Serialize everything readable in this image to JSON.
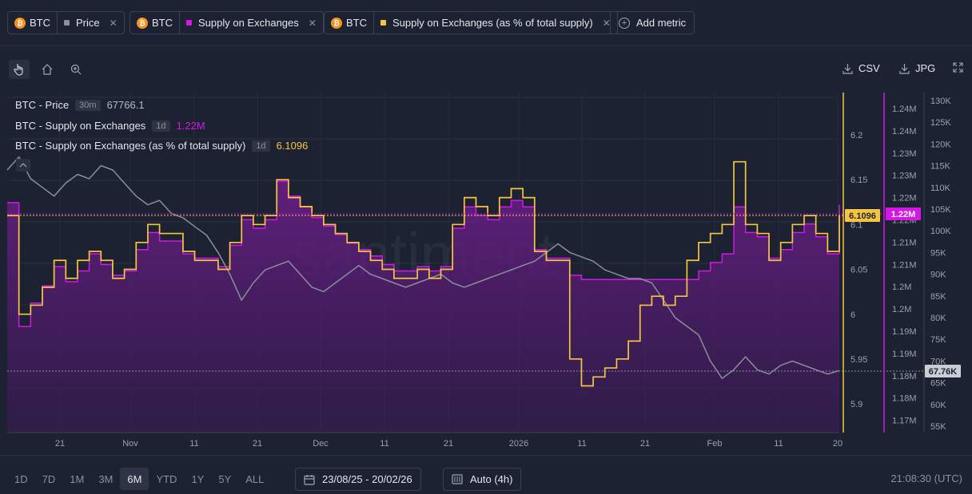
{
  "metrics": [
    {
      "asset": "BTC",
      "name": "Price",
      "color": "#8a8f99"
    },
    {
      "asset": "BTC",
      "name": "Supply on Exchanges",
      "color": "#d417e6"
    },
    {
      "asset": "BTC",
      "name": "Supply on Exchanges (as % of total supply)",
      "color": "#f5c542"
    }
  ],
  "add_metric_label": "Add metric",
  "export": {
    "csv": "CSV",
    "jpg": "JPG"
  },
  "watermark": "santiment",
  "legend": [
    {
      "label": "BTC - Price",
      "interval": "30m",
      "value": "67766.1",
      "color": "#b5b9c2"
    },
    {
      "label": "BTC - Supply on Exchanges",
      "interval": "1d",
      "value": "1.22M",
      "color": "#d417e6"
    },
    {
      "label": "BTC - Supply on Exchanges (as % of total supply)",
      "interval": "1d",
      "value": "6.1096",
      "color": "#f5c542"
    }
  ],
  "range_buttons": [
    "1D",
    "7D",
    "1M",
    "3M",
    "6M",
    "YTD",
    "1Y",
    "5Y",
    "ALL"
  ],
  "active_range": "6M",
  "date_range": "23/08/25 - 20/02/26",
  "interval": "Auto (4h)",
  "clock": "21:08:30 (UTC)",
  "chart_data": {
    "type": "line",
    "x_labels": [
      "21",
      "Nov",
      "11",
      "21",
      "Dec",
      "11",
      "21",
      "2026",
      "11",
      "21",
      "Feb",
      "11",
      "20"
    ],
    "pct_axis": {
      "ticks": [
        "6.2",
        "6.15",
        "6.1",
        "6.05",
        "6",
        "5.95",
        "5.9"
      ],
      "current": "6.1096"
    },
    "supply_axis": {
      "ticks": [
        "1.24M",
        "1.24M",
        "1.23M",
        "1.23M",
        "1.22M",
        "1.22M",
        "1.21M",
        "1.21M",
        "1.2M",
        "1.2M",
        "1.19M",
        "1.19M",
        "1.18M",
        "1.18M",
        "1.17M"
      ],
      "current": "1.22M"
    },
    "price_axis": {
      "ticks": [
        "130K",
        "125K",
        "120K",
        "115K",
        "110K",
        "105K",
        "100K",
        "95K",
        "90K",
        "85K",
        "80K",
        "75K",
        "70K",
        "65K",
        "60K",
        "55K"
      ],
      "current": "67.76K"
    },
    "series": [
      {
        "name": "BTC - Supply on Exchanges (as % of total supply)",
        "axis": "pct",
        "color": "#f5c542",
        "values": [
          6.11,
          6.0,
          6.01,
          6.03,
          6.06,
          6.04,
          6.06,
          6.07,
          6.06,
          6.04,
          6.05,
          6.08,
          6.1,
          6.09,
          6.09,
          6.07,
          6.06,
          6.06,
          6.05,
          6.08,
          6.11,
          6.1,
          6.11,
          6.15,
          6.13,
          6.12,
          6.11,
          6.1,
          6.09,
          6.08,
          6.07,
          6.06,
          6.05,
          6.04,
          6.04,
          6.05,
          6.04,
          6.05,
          6.1,
          6.13,
          6.12,
          6.11,
          6.13,
          6.14,
          6.13,
          6.07,
          6.06,
          6.06,
          5.95,
          5.92,
          5.93,
          5.94,
          5.95,
          5.97,
          6.01,
          6.02,
          6.01,
          6.02,
          6.06,
          6.08,
          6.09,
          6.1,
          6.17,
          6.1,
          6.09,
          6.06,
          6.08,
          6.1,
          6.11,
          6.09,
          6.07,
          6.11
        ]
      },
      {
        "name": "BTC - Supply on Exchanges",
        "axis": "supply",
        "color": "#d417e6",
        "values": [
          1.2205,
          1.1915,
          1.197,
          1.201,
          1.2055,
          1.202,
          1.2045,
          1.2085,
          1.206,
          1.2035,
          1.2045,
          1.2095,
          1.2135,
          1.2115,
          1.2115,
          1.2085,
          1.2075,
          1.2075,
          1.2055,
          1.2105,
          1.2165,
          1.2145,
          1.2165,
          1.2255,
          1.222,
          1.2195,
          1.217,
          1.215,
          1.213,
          1.211,
          1.2095,
          1.208,
          1.206,
          1.2045,
          1.2045,
          1.2055,
          1.2045,
          1.2055,
          1.2145,
          1.2195,
          1.2175,
          1.2165,
          1.2195,
          1.221,
          1.2195,
          1.2095,
          1.2075,
          1.2075,
          1.2035,
          1.2025,
          1.2025,
          1.2025,
          1.2025,
          1.2025,
          1.2025,
          1.2025,
          1.2025,
          1.2025,
          1.2025,
          1.2045,
          1.2065,
          1.2085,
          1.2195,
          1.2135,
          1.2125,
          1.2075,
          1.2095,
          1.2135,
          1.2155,
          1.2125,
          1.2085,
          1.22
        ]
      },
      {
        "name": "BTC - Price",
        "axis": "price",
        "color": "#8a8f99",
        "values": [
          114,
          117,
          112,
          110,
          108,
          111,
          113,
          112,
          115,
          114,
          111,
          108,
          106,
          107,
          104,
          103,
          101,
          99,
          95,
          90,
          84,
          88,
          91,
          92,
          93,
          90,
          87,
          86,
          88,
          90,
          92,
          90,
          89,
          88,
          87,
          88,
          89,
          90,
          88,
          87,
          88,
          89,
          90,
          91,
          92,
          93,
          95,
          97,
          95,
          94,
          93,
          91,
          90,
          89,
          89,
          88,
          84,
          80,
          78,
          76,
          70,
          66,
          68,
          71,
          68,
          67,
          69,
          70,
          69,
          68,
          67,
          67.8
        ]
      }
    ]
  }
}
